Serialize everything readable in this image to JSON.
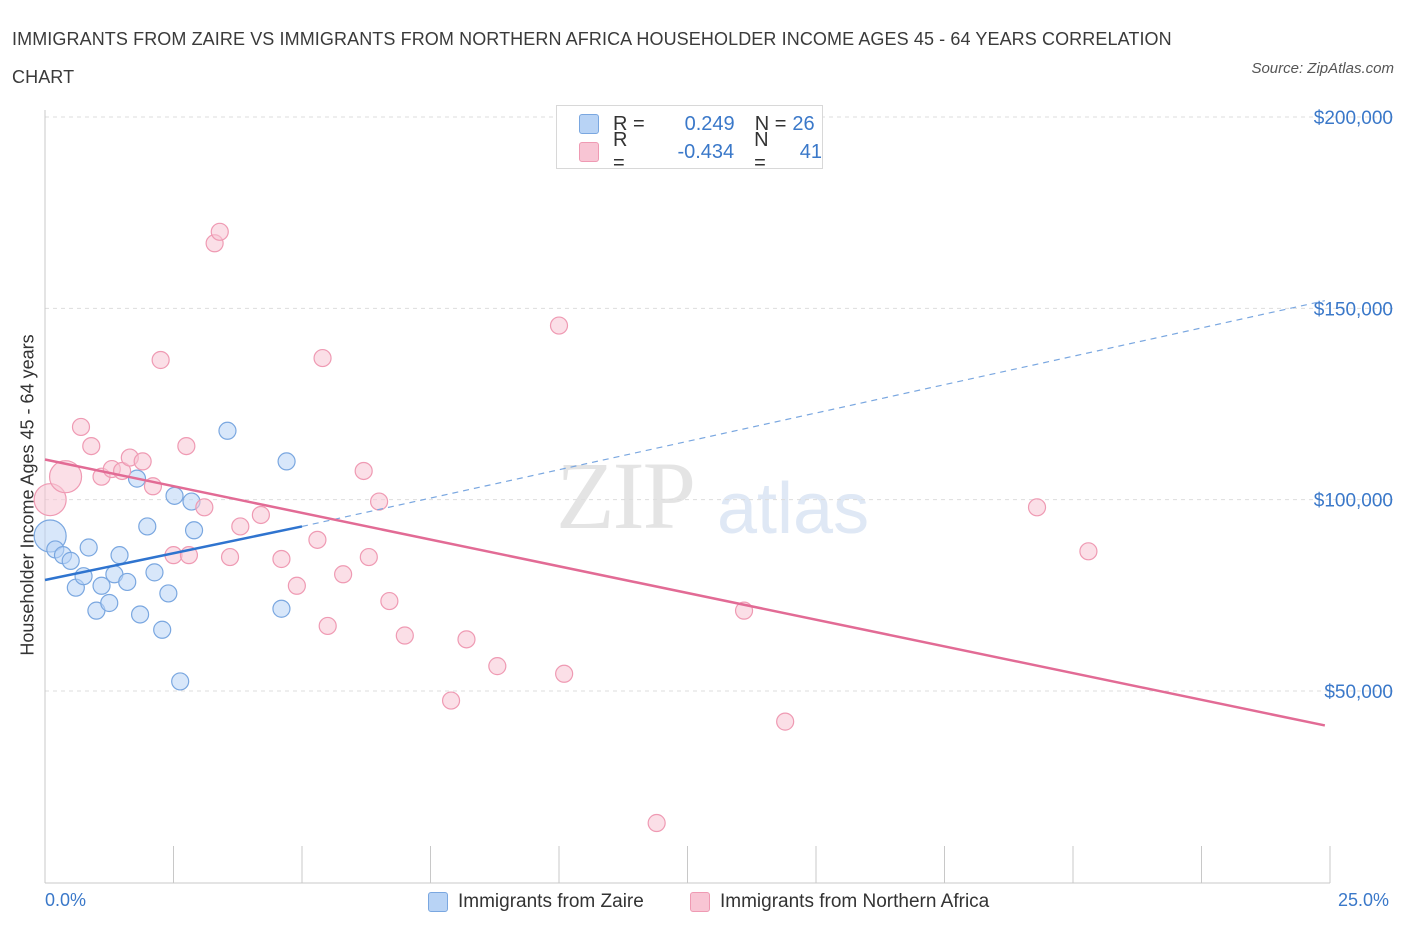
{
  "title": "IMMIGRANTS FROM ZAIRE VS IMMIGRANTS FROM NORTHERN AFRICA HOUSEHOLDER INCOME AGES 45 - 64 YEARS CORRELATION CHART",
  "source": "Source: ZipAtlas.com",
  "watermark": {
    "zip": "ZIP",
    "atlas": "atlas"
  },
  "legend": {
    "rows": [
      {
        "r_label": "R =",
        "r_value": "0.249",
        "n_label": "N =",
        "n_value": "26",
        "fill": "#b8d3f5",
        "stroke": "#7aa7e0"
      },
      {
        "r_label": "R =",
        "r_value": "-0.434",
        "n_label": "N =",
        "n_value": "41",
        "fill": "#f8c5d4",
        "stroke": "#ef9ab3"
      }
    ]
  },
  "colors": {
    "accent": "#3a78c9",
    "zaire": "#2f74cf",
    "nafrica": "#e26b95"
  },
  "chart_data": {
    "type": "scatter",
    "title": "IMMIGRANTS FROM ZAIRE VS IMMIGRANTS FROM NORTHERN AFRICA HOUSEHOLDER INCOME AGES 45 - 64 YEARS CORRELATION CHART",
    "xlabel": "",
    "ylabel": "Householder Income Ages 45 - 64 years",
    "xlim": [
      0,
      25
    ],
    "ylim": [
      0,
      200000
    ],
    "x_tick_labels": [
      "0.0%",
      "25.0%"
    ],
    "y_ticks": [
      50000,
      100000,
      150000,
      200000
    ],
    "y_tick_labels": [
      "$50,000",
      "$100,000",
      "$150,000",
      "$200,000"
    ],
    "grid": true,
    "legend_position": "top-center",
    "series": [
      {
        "name": "Immigrants from Zaire",
        "color": "#7aa7e0",
        "points": [
          {
            "x": 0.1,
            "y": 90500,
            "big": true
          },
          {
            "x": 0.2,
            "y": 87000
          },
          {
            "x": 0.35,
            "y": 85500
          },
          {
            "x": 0.5,
            "y": 84000
          },
          {
            "x": 0.6,
            "y": 77000
          },
          {
            "x": 0.75,
            "y": 80000
          },
          {
            "x": 0.85,
            "y": 87500
          },
          {
            "x": 1.0,
            "y": 71000
          },
          {
            "x": 1.1,
            "y": 77500
          },
          {
            "x": 1.25,
            "y": 73000
          },
          {
            "x": 1.35,
            "y": 80500
          },
          {
            "x": 1.45,
            "y": 85500
          },
          {
            "x": 1.6,
            "y": 78500
          },
          {
            "x": 1.85,
            "y": 70000
          },
          {
            "x": 1.99,
            "y": 93000
          },
          {
            "x": 2.13,
            "y": 81000
          },
          {
            "x": 2.28,
            "y": 66000
          },
          {
            "x": 2.4,
            "y": 75500
          },
          {
            "x": 2.52,
            "y": 101000
          },
          {
            "x": 2.63,
            "y": 52500
          },
          {
            "x": 2.85,
            "y": 99500
          },
          {
            "x": 2.9,
            "y": 92000
          },
          {
            "x": 3.55,
            "y": 118000
          },
          {
            "x": 4.6,
            "y": 71500
          },
          {
            "x": 4.7,
            "y": 110000
          },
          {
            "x": 1.79,
            "y": 105500
          }
        ],
        "trend": {
          "x0": 0,
          "y0": 79000,
          "x1": 5.0,
          "y1": 93000,
          "dashed_to_x": 24.9,
          "dashed_to_y": 152000
        }
      },
      {
        "name": "Immigrants from Northern Africa",
        "color": "#ef9ab3",
        "points": [
          {
            "x": 0.1,
            "y": 100000,
            "big": true
          },
          {
            "x": 0.4,
            "y": 106000,
            "big": true
          },
          {
            "x": 0.7,
            "y": 119000
          },
          {
            "x": 0.9,
            "y": 114000
          },
          {
            "x": 1.1,
            "y": 106000
          },
          {
            "x": 1.3,
            "y": 108000
          },
          {
            "x": 1.5,
            "y": 107500
          },
          {
            "x": 1.65,
            "y": 111000
          },
          {
            "x": 1.9,
            "y": 110000
          },
          {
            "x": 2.1,
            "y": 103500
          },
          {
            "x": 2.25,
            "y": 136500
          },
          {
            "x": 2.5,
            "y": 85500
          },
          {
            "x": 2.75,
            "y": 114000
          },
          {
            "x": 2.8,
            "y": 85500
          },
          {
            "x": 3.1,
            "y": 98000
          },
          {
            "x": 3.3,
            "y": 167000
          },
          {
            "x": 3.4,
            "y": 170000
          },
          {
            "x": 3.6,
            "y": 85000
          },
          {
            "x": 3.8,
            "y": 93000
          },
          {
            "x": 4.2,
            "y": 96000
          },
          {
            "x": 4.6,
            "y": 84500
          },
          {
            "x": 4.9,
            "y": 77500
          },
          {
            "x": 5.3,
            "y": 89500
          },
          {
            "x": 5.4,
            "y": 137000
          },
          {
            "x": 5.5,
            "y": 67000
          },
          {
            "x": 5.8,
            "y": 80500
          },
          {
            "x": 6.2,
            "y": 107500
          },
          {
            "x": 6.3,
            "y": 85000
          },
          {
            "x": 6.5,
            "y": 99500
          },
          {
            "x": 6.7,
            "y": 73500
          },
          {
            "x": 7.0,
            "y": 64500
          },
          {
            "x": 7.9,
            "y": 47500
          },
          {
            "x": 8.8,
            "y": 56500
          },
          {
            "x": 10.0,
            "y": 145500
          },
          {
            "x": 10.1,
            "y": 54500
          },
          {
            "x": 11.9,
            "y": 15500
          },
          {
            "x": 13.6,
            "y": 71000
          },
          {
            "x": 14.4,
            "y": 42000
          },
          {
            "x": 19.3,
            "y": 98000
          },
          {
            "x": 20.3,
            "y": 86500
          },
          {
            "x": 8.2,
            "y": 63500
          }
        ],
        "trend": {
          "x0": 0,
          "y0": 110500,
          "x1": 24.9,
          "y1": 41000
        }
      }
    ]
  },
  "bottom_legend": [
    "Immigrants from Zaire",
    "Immigrants from Northern Africa"
  ]
}
